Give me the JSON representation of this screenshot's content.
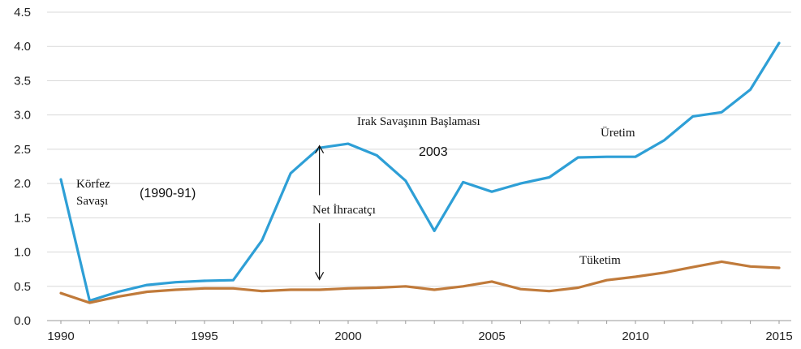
{
  "chart_data": {
    "type": "line",
    "x": [
      1990,
      1991,
      1992,
      1993,
      1994,
      1995,
      1996,
      1997,
      1998,
      1999,
      2000,
      2001,
      2002,
      2003,
      2004,
      2005,
      2006,
      2007,
      2008,
      2009,
      2010,
      2011,
      2012,
      2013,
      2014,
      2015
    ],
    "series": [
      {
        "name": "Üretim",
        "color": "#2e9fd6",
        "values": [
          2.06,
          0.29,
          0.42,
          0.52,
          0.56,
          0.58,
          0.59,
          1.17,
          2.15,
          2.52,
          2.58,
          2.41,
          2.04,
          1.31,
          2.02,
          1.88,
          2.0,
          2.09,
          2.38,
          2.39,
          2.39,
          2.63,
          2.98,
          3.04,
          3.37,
          4.05
        ]
      },
      {
        "name": "Tüketim",
        "color": "#c07a3a",
        "values": [
          0.4,
          0.26,
          0.35,
          0.42,
          0.45,
          0.47,
          0.47,
          0.43,
          0.45,
          0.45,
          0.47,
          0.48,
          0.5,
          0.45,
          0.5,
          0.57,
          0.46,
          0.43,
          0.48,
          0.59,
          0.64,
          0.7,
          0.78,
          0.86,
          0.79,
          0.77
        ]
      }
    ],
    "xticks": [
      1990,
      1995,
      2000,
      2005,
      2010,
      2015
    ],
    "yticks": [
      "0.0",
      "0.5",
      "1.0",
      "1.5",
      "2.0",
      "2.5",
      "3.0",
      "3.5",
      "4.0",
      "4.5"
    ],
    "xlim": [
      1990,
      2015
    ],
    "ylim": [
      0,
      4.5
    ],
    "grid": "horizontal",
    "title": "",
    "xlabel": "",
    "ylabel": "",
    "annotations": {
      "korfez_line1": "Körfez",
      "korfez_line2": "Savaşı",
      "korfez_years": "(1990-91)",
      "irak": "Irak Savaşının Başlaması",
      "irak_year": "2003",
      "net": "Net İhracatçı",
      "uretim": "Üretim",
      "tuketim": "Tüketim"
    }
  }
}
